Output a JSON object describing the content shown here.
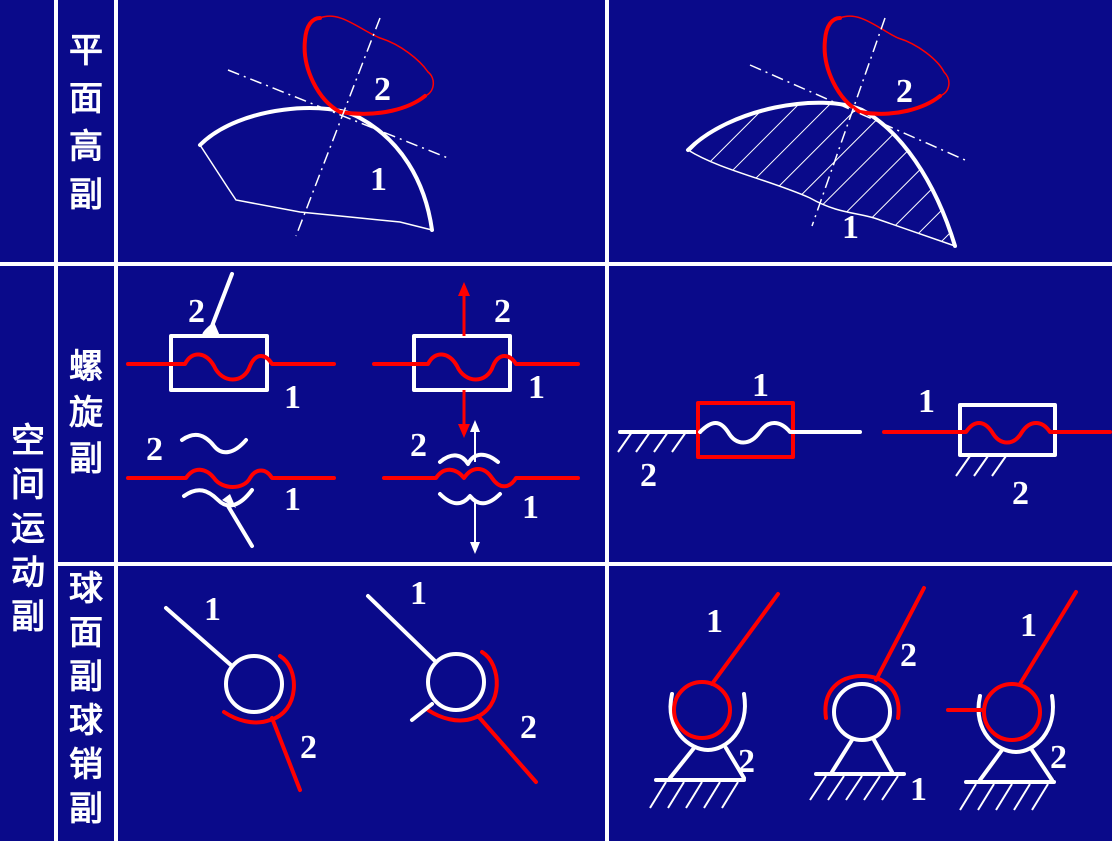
{
  "side_label": [
    "空",
    "间",
    "运",
    "动",
    "副"
  ],
  "rows": [
    {
      "label": [
        "平",
        "面",
        "高",
        "副"
      ],
      "numbers": [
        "1",
        "2",
        "1",
        "2"
      ]
    },
    {
      "label": [
        "螺",
        "旋",
        "副"
      ],
      "numbers": [
        "2",
        "1",
        "2",
        "1",
        "2",
        "1",
        "2",
        "1",
        "2",
        "1",
        "1",
        "2"
      ]
    },
    {
      "label": [
        "球",
        "面",
        "副",
        "球",
        "销",
        "副"
      ],
      "numbers": [
        "1",
        "2",
        "1",
        "2",
        "1",
        "2",
        "2",
        "1",
        "1",
        "2"
      ]
    }
  ],
  "colors": {
    "background": "#0a0a8a",
    "line": "#ffffff",
    "accent": "#ff0000"
  }
}
